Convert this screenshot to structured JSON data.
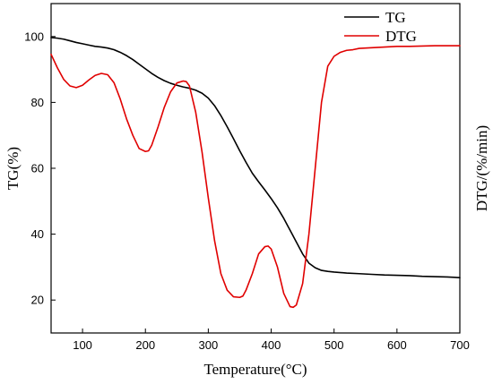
{
  "chart_data": {
    "type": "line",
    "xlabel": "Temperature(°C)",
    "ylabel_left": "TG(%)",
    "ylabel_right": "DTG/(%/min)",
    "xlim": [
      50,
      700
    ],
    "ylim_left": [
      10,
      110
    ],
    "x_ticks": [
      100,
      200,
      300,
      400,
      500,
      600,
      700
    ],
    "y_ticks_left": [
      20,
      40,
      60,
      80,
      100
    ],
    "grid": false,
    "legend_position": "top-right",
    "series": [
      {
        "name": "TG",
        "color": "#000000",
        "axis": "left",
        "x": [
          50,
          60,
          70,
          80,
          90,
          100,
          110,
          120,
          130,
          140,
          150,
          160,
          170,
          180,
          190,
          200,
          210,
          220,
          230,
          240,
          250,
          260,
          270,
          280,
          290,
          300,
          310,
          320,
          330,
          340,
          350,
          360,
          370,
          380,
          390,
          400,
          410,
          420,
          430,
          440,
          450,
          460,
          470,
          480,
          490,
          500,
          520,
          540,
          560,
          580,
          600,
          620,
          640,
          660,
          680,
          700
        ],
        "y": [
          99.7,
          99.5,
          99.2,
          98.7,
          98.2,
          97.8,
          97.4,
          97.0,
          96.8,
          96.5,
          96.0,
          95.2,
          94.2,
          93.0,
          91.6,
          90.2,
          88.8,
          87.6,
          86.6,
          85.8,
          85.2,
          84.7,
          84.3,
          83.7,
          82.8,
          81.3,
          79.0,
          76.0,
          72.6,
          69.0,
          65.3,
          61.8,
          58.5,
          55.9,
          53.4,
          50.8,
          48.0,
          44.8,
          41.2,
          37.6,
          34.0,
          31.2,
          29.8,
          29.0,
          28.7,
          28.5,
          28.2,
          28.0,
          27.8,
          27.6,
          27.5,
          27.4,
          27.2,
          27.1,
          27.0,
          26.8
        ]
      },
      {
        "name": "DTG",
        "color": "#e00000",
        "axis": "right",
        "x": [
          50,
          60,
          70,
          80,
          90,
          100,
          110,
          120,
          130,
          140,
          150,
          160,
          170,
          180,
          190,
          200,
          205,
          210,
          220,
          230,
          240,
          250,
          260,
          265,
          270,
          280,
          290,
          300,
          310,
          320,
          330,
          340,
          350,
          355,
          360,
          370,
          380,
          390,
          395,
          400,
          410,
          420,
          430,
          435,
          440,
          450,
          460,
          470,
          480,
          490,
          500,
          510,
          520,
          530,
          540,
          560,
          580,
          600,
          620,
          640,
          660,
          680,
          700
        ],
        "y": [
          94.6,
          90.5,
          87.0,
          85.0,
          84.5,
          85.2,
          86.8,
          88.2,
          88.8,
          88.4,
          86.0,
          81.0,
          75.0,
          70.0,
          66.0,
          65.1,
          65.3,
          67.0,
          72.5,
          78.5,
          83.2,
          85.9,
          86.5,
          86.3,
          85.0,
          77.0,
          65.0,
          51.0,
          38.0,
          28.0,
          23.0,
          21.0,
          20.8,
          21.2,
          23.0,
          28.0,
          34.0,
          36.2,
          36.4,
          35.5,
          30.0,
          22.0,
          18.0,
          17.8,
          18.5,
          25.0,
          40.0,
          60.0,
          80.0,
          91.0,
          94.0,
          95.2,
          95.8,
          96.0,
          96.4,
          96.6,
          96.8,
          97.0,
          97.0,
          97.1,
          97.2,
          97.2,
          97.2
        ]
      }
    ]
  }
}
